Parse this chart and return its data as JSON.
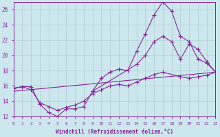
{
  "xlabel": "Windchill (Refroidissement éolien,°C)",
  "bg_color": "#cce8ee",
  "line_color": "#882299",
  "grid_color": "#aacccc",
  "xlim": [
    0,
    23
  ],
  "ylim": [
    12,
    27
  ],
  "yticks": [
    12,
    14,
    16,
    18,
    20,
    22,
    24,
    26
  ],
  "xticks": [
    0,
    1,
    2,
    3,
    4,
    5,
    6,
    7,
    8,
    9,
    10,
    11,
    12,
    13,
    14,
    15,
    16,
    17,
    18,
    19,
    20,
    21,
    22,
    23
  ],
  "line1_x": [
    0,
    1,
    2,
    3,
    4,
    5,
    6,
    7,
    8,
    9,
    10,
    11,
    12,
    13,
    14,
    15,
    16,
    17,
    18,
    19,
    20,
    21,
    22,
    23
  ],
  "line1_y": [
    15.7,
    15.9,
    15.9,
    13.6,
    12.5,
    12.0,
    13.0,
    13.0,
    13.3,
    15.3,
    17.0,
    17.8,
    18.2,
    18.0,
    20.5,
    22.8,
    25.3,
    27.0,
    25.8,
    22.5,
    21.8,
    19.5,
    19.0,
    17.8
  ],
  "line2_x": [
    9,
    14,
    15,
    16,
    17,
    18,
    19,
    20,
    21,
    22,
    23
  ],
  "line2_y": [
    15.3,
    18.8,
    20.0,
    21.8,
    22.5,
    21.8,
    19.5,
    21.5,
    20.8,
    19.2,
    17.8
  ],
  "line3_x": [
    0,
    1,
    2,
    3,
    4,
    5,
    6,
    7,
    8,
    9,
    10,
    11,
    12,
    13,
    14,
    15,
    16,
    17,
    19,
    20,
    21,
    22,
    23
  ],
  "line3_y": [
    15.7,
    15.9,
    15.5,
    13.8,
    13.3,
    12.8,
    13.2,
    13.5,
    14.0,
    15.0,
    15.5,
    16.0,
    16.2,
    16.0,
    16.5,
    17.0,
    17.5,
    17.8,
    17.2,
    17.0,
    17.2,
    17.4,
    17.8
  ],
  "line4_x": [
    0,
    23
  ],
  "line4_y": [
    15.3,
    17.8
  ]
}
